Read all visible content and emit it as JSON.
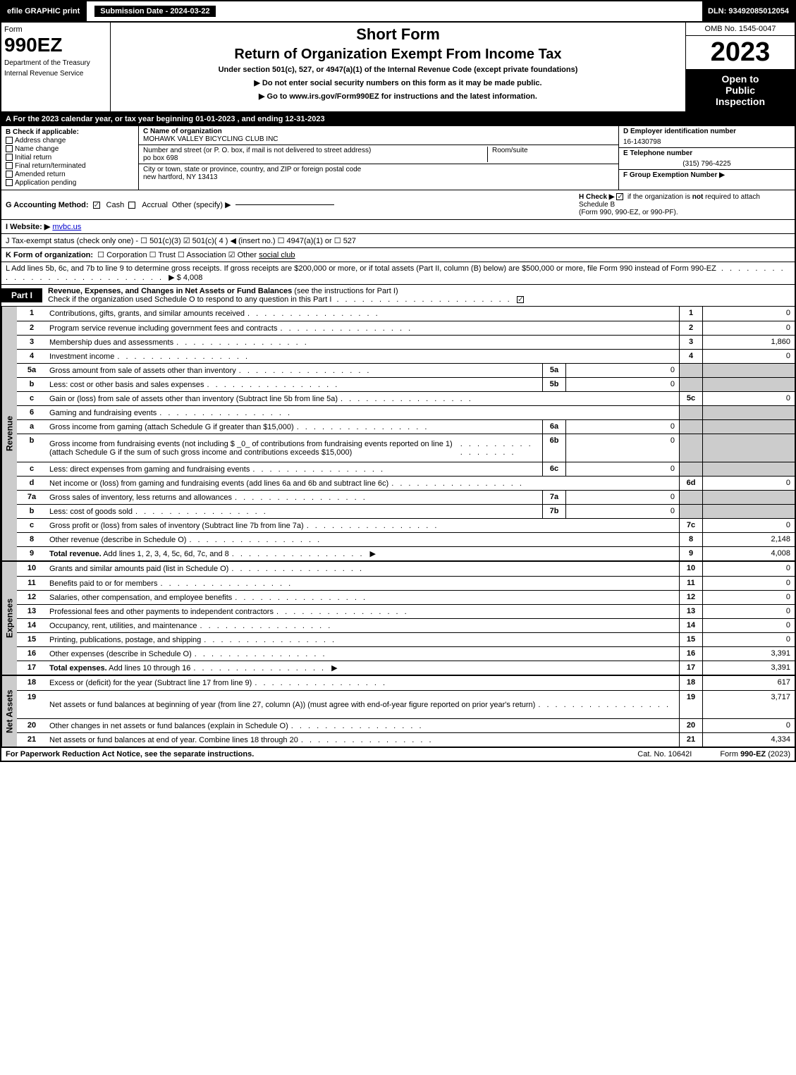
{
  "topbar": {
    "efile": "efile GRAPHIC print",
    "submission": "Submission Date - 2024-03-22",
    "dln": "DLN: 93492085012054"
  },
  "header": {
    "form_label": "Form",
    "form_number": "990EZ",
    "dept1": "Department of the Treasury",
    "dept2": "Internal Revenue Service",
    "short_form": "Short Form",
    "title": "Return of Organization Exempt From Income Tax",
    "subtitle": "Under section 501(c), 527, or 4947(a)(1) of the Internal Revenue Code (except private foundations)",
    "warn": "▶ Do not enter social security numbers on this form as it may be made public.",
    "goto": "▶ Go to www.irs.gov/Form990EZ for instructions and the latest information.",
    "omb": "OMB No. 1545-0047",
    "year": "2023",
    "open1": "Open to",
    "open2": "Public",
    "open3": "Inspection"
  },
  "lineA": "A  For the 2023 calendar year, or tax year beginning 01-01-2023 , and ending 12-31-2023",
  "colB": {
    "head": "B  Check if applicable:",
    "opts": [
      "Address change",
      "Name change",
      "Initial return",
      "Final return/terminated",
      "Amended return",
      "Application pending"
    ]
  },
  "colC": {
    "name_lbl": "C Name of organization",
    "name": "MOHAWK VALLEY BICYCLING CLUB INC",
    "addr_lbl": "Number and street (or P. O. box, if mail is not delivered to street address)",
    "room_lbl": "Room/suite",
    "addr": "po box 698",
    "city_lbl": "City or town, state or province, country, and ZIP or foreign postal code",
    "city": "new hartford, NY  13413"
  },
  "colD": {
    "ein_lbl": "D Employer identification number",
    "ein": "16-1430798",
    "tel_lbl": "E Telephone number",
    "tel": "(315) 796-4225",
    "grp_lbl": "F Group Exemption Number   ▶"
  },
  "lineG": {
    "lbl": "G Accounting Method:",
    "cash": "Cash",
    "accrual": "Accrual",
    "other": "Other (specify) ▶"
  },
  "lineH": {
    "lbl": "H  Check ▶",
    "txt1": "if the organization is ",
    "not": "not",
    "txt2": " required to attach Schedule B",
    "txt3": "(Form 990, 990-EZ, or 990-PF)."
  },
  "lineI": {
    "lbl": "I Website: ▶",
    "val": "mvbc.us"
  },
  "lineJ": "J Tax-exempt status (check only one) -  ☐ 501(c)(3)  ☑ 501(c)( 4 ) ◀ (insert no.)  ☐ 4947(a)(1) or  ☐ 527",
  "lineK": {
    "lbl": "K Form of organization:",
    "opts": "☐ Corporation   ☐ Trust   ☐ Association   ☑ Other",
    "other_val": "social club"
  },
  "lineL": {
    "txt": "L Add lines 5b, 6c, and 7b to line 9 to determine gross receipts. If gross receipts are $200,000 or more, or if total assets (Part II, column (B) below) are $500,000 or more, file Form 990 instead of Form 990-EZ",
    "arrow": "▶ $",
    "val": "4,008"
  },
  "partI": {
    "tag": "Part I",
    "title_b": "Revenue, Expenses, and Changes in Net Assets or Fund Balances",
    "title_rest": " (see the instructions for Part I)",
    "check_line": "Check if the organization used Schedule O to respond to any question in this Part I"
  },
  "vtabs": {
    "revenue": "Revenue",
    "expenses": "Expenses",
    "netassets": "Net Assets"
  },
  "rows": [
    {
      "ln": "1",
      "desc": "Contributions, gifts, grants, and similar amounts received",
      "r": "1",
      "v": "0"
    },
    {
      "ln": "2",
      "desc": "Program service revenue including government fees and contracts",
      "r": "2",
      "v": "0"
    },
    {
      "ln": "3",
      "desc": "Membership dues and assessments",
      "r": "3",
      "v": "1,860"
    },
    {
      "ln": "4",
      "desc": "Investment income",
      "r": "4",
      "v": "0"
    },
    {
      "ln": "5a",
      "desc": "Gross amount from sale of assets other than inventory",
      "sub_r": "5a",
      "sub_v": "0",
      "shade": true
    },
    {
      "ln": "b",
      "desc": "Less: cost or other basis and sales expenses",
      "sub_r": "5b",
      "sub_v": "0",
      "shade": true
    },
    {
      "ln": "c",
      "desc": "Gain or (loss) from sale of assets other than inventory (Subtract line 5b from line 5a)",
      "r": "5c",
      "v": "0"
    },
    {
      "ln": "6",
      "desc": "Gaming and fundraising events",
      "shade": true,
      "noval": true
    },
    {
      "ln": "a",
      "desc": "Gross income from gaming (attach Schedule G if greater than $15,000)",
      "sub_r": "6a",
      "sub_v": "0",
      "shade": true
    },
    {
      "ln": "b",
      "desc": "Gross income from fundraising events (not including $ _0_ of contributions from fundraising events reported on line 1) (attach Schedule G if the sum of such gross income and contributions exceeds $15,000)",
      "sub_r": "6b",
      "sub_v": "0",
      "shade": true,
      "tall": true
    },
    {
      "ln": "c",
      "desc": "Less: direct expenses from gaming and fundraising events",
      "sub_r": "6c",
      "sub_v": "0",
      "shade": true
    },
    {
      "ln": "d",
      "desc": "Net income or (loss) from gaming and fundraising events (add lines 6a and 6b and subtract line 6c)",
      "r": "6d",
      "v": "0"
    },
    {
      "ln": "7a",
      "desc": "Gross sales of inventory, less returns and allowances",
      "sub_r": "7a",
      "sub_v": "0",
      "shade": true
    },
    {
      "ln": "b",
      "desc": "Less: cost of goods sold",
      "sub_r": "7b",
      "sub_v": "0",
      "shade": true
    },
    {
      "ln": "c",
      "desc": "Gross profit or (loss) from sales of inventory (Subtract line 7b from line 7a)",
      "r": "7c",
      "v": "0"
    },
    {
      "ln": "8",
      "desc": "Other revenue (describe in Schedule O)",
      "r": "8",
      "v": "2,148"
    },
    {
      "ln": "9",
      "desc": "Total revenue. Add lines 1, 2, 3, 4, 5c, 6d, 7c, and 8",
      "r": "9",
      "v": "4,008",
      "bold": true,
      "arrow": true
    }
  ],
  "exp_rows": [
    {
      "ln": "10",
      "desc": "Grants and similar amounts paid (list in Schedule O)",
      "r": "10",
      "v": "0"
    },
    {
      "ln": "11",
      "desc": "Benefits paid to or for members",
      "r": "11",
      "v": "0"
    },
    {
      "ln": "12",
      "desc": "Salaries, other compensation, and employee benefits",
      "r": "12",
      "v": "0"
    },
    {
      "ln": "13",
      "desc": "Professional fees and other payments to independent contractors",
      "r": "13",
      "v": "0"
    },
    {
      "ln": "14",
      "desc": "Occupancy, rent, utilities, and maintenance",
      "r": "14",
      "v": "0"
    },
    {
      "ln": "15",
      "desc": "Printing, publications, postage, and shipping",
      "r": "15",
      "v": "0"
    },
    {
      "ln": "16",
      "desc": "Other expenses (describe in Schedule O)",
      "r": "16",
      "v": "3,391"
    },
    {
      "ln": "17",
      "desc": "Total expenses. Add lines 10 through 16",
      "r": "17",
      "v": "3,391",
      "bold": true,
      "arrow": true
    }
  ],
  "net_rows": [
    {
      "ln": "18",
      "desc": "Excess or (deficit) for the year (Subtract line 17 from line 9)",
      "r": "18",
      "v": "617"
    },
    {
      "ln": "19",
      "desc": "Net assets or fund balances at beginning of year (from line 27, column (A)) (must agree with end-of-year figure reported on prior year's return)",
      "r": "19",
      "v": "3,717",
      "tall": true
    },
    {
      "ln": "20",
      "desc": "Other changes in net assets or fund balances (explain in Schedule O)",
      "r": "20",
      "v": "0"
    },
    {
      "ln": "21",
      "desc": "Net assets or fund balances at end of year. Combine lines 18 through 20",
      "r": "21",
      "v": "4,334"
    }
  ],
  "footer": {
    "left": "For Paperwork Reduction Act Notice, see the separate instructions.",
    "mid": "Cat. No. 10642I",
    "right_pre": "Form ",
    "right_b": "990-EZ",
    "right_post": " (2023)"
  }
}
